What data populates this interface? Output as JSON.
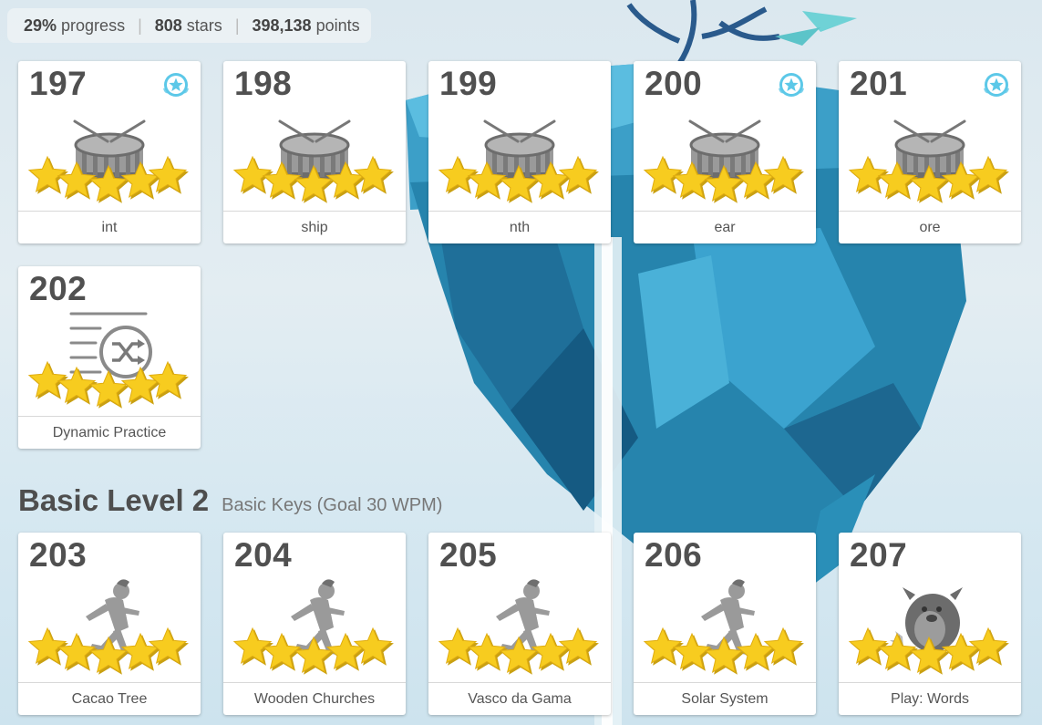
{
  "stats": {
    "progress_value": "29%",
    "progress_label": "progress",
    "stars_value": "808",
    "stars_label": "stars",
    "points_value": "398,138",
    "points_label": "points"
  },
  "section": {
    "title": "Basic Level 2",
    "subtitle": "Basic Keys (Goal 30 WPM)"
  },
  "lessons": [
    {
      "number": "197",
      "label": "int",
      "icon": "drum-icon",
      "stars": 5,
      "badge": true
    },
    {
      "number": "198",
      "label": "ship",
      "icon": "drum-icon",
      "stars": 5,
      "badge": false
    },
    {
      "number": "199",
      "label": "nth",
      "icon": "drum-icon",
      "stars": 5,
      "badge": false
    },
    {
      "number": "200",
      "label": "ear",
      "icon": "drum-icon",
      "stars": 5,
      "badge": true
    },
    {
      "number": "201",
      "label": "ore",
      "icon": "drum-icon",
      "stars": 5,
      "badge": true
    },
    {
      "number": "202",
      "label": "Dynamic Practice",
      "icon": "shuffle-list-icon",
      "stars": 5,
      "badge": false
    },
    {
      "number": "203",
      "label": "Cacao Tree",
      "icon": "runner-icon",
      "stars": 5,
      "badge": false
    },
    {
      "number": "204",
      "label": "Wooden Churches",
      "icon": "runner-icon",
      "stars": 5,
      "badge": false
    },
    {
      "number": "205",
      "label": "Vasco da Gama",
      "icon": "runner-icon",
      "stars": 5,
      "badge": false
    },
    {
      "number": "206",
      "label": "Solar System",
      "icon": "runner-icon",
      "stars": 5,
      "badge": false
    },
    {
      "number": "207",
      "label": "Play: Words",
      "icon": "monster-icon",
      "stars": 5,
      "badge": false
    }
  ],
  "colors": {
    "star": "#f7cc1f",
    "badge": "#5cc8e8",
    "icon_gray": "#8a8a8a",
    "island": "#2a8fb8"
  }
}
